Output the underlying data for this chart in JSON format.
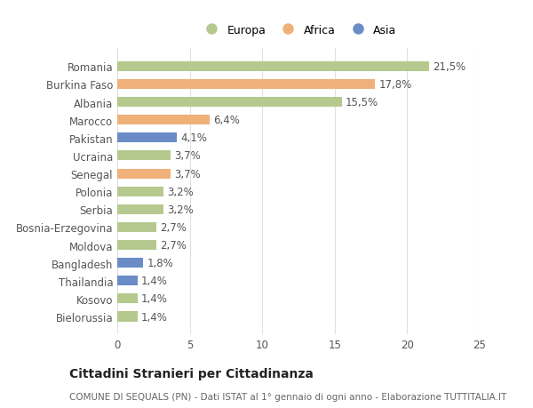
{
  "countries": [
    "Romania",
    "Burkina Faso",
    "Albania",
    "Marocco",
    "Pakistan",
    "Ucraina",
    "Senegal",
    "Polonia",
    "Serbia",
    "Bosnia-Erzegovina",
    "Moldova",
    "Bangladesh",
    "Thailandia",
    "Kosovo",
    "Bielorussia"
  ],
  "values": [
    21.5,
    17.8,
    15.5,
    6.4,
    4.1,
    3.7,
    3.7,
    3.2,
    3.2,
    2.7,
    2.7,
    1.8,
    1.4,
    1.4,
    1.4
  ],
  "labels": [
    "21,5%",
    "17,8%",
    "15,5%",
    "6,4%",
    "4,1%",
    "3,7%",
    "3,7%",
    "3,2%",
    "3,2%",
    "2,7%",
    "2,7%",
    "1,8%",
    "1,4%",
    "1,4%",
    "1,4%"
  ],
  "continents": [
    "Europa",
    "Africa",
    "Europa",
    "Africa",
    "Asia",
    "Europa",
    "Africa",
    "Europa",
    "Europa",
    "Europa",
    "Europa",
    "Asia",
    "Asia",
    "Europa",
    "Europa"
  ],
  "colors": {
    "Europa": "#b5c98e",
    "Africa": "#f0b07a",
    "Asia": "#6b8cc7"
  },
  "xlim": [
    0,
    25
  ],
  "xticks": [
    0,
    5,
    10,
    15,
    20,
    25
  ],
  "background_color": "#ffffff",
  "grid_color": "#e0e0e0",
  "title": "Cittadini Stranieri per Cittadinanza",
  "subtitle": "COMUNE DI SEQUALS (PN) - Dati ISTAT al 1° gennaio di ogni anno - Elaborazione TUTTITALIA.IT",
  "bar_height": 0.55,
  "label_fontsize": 8.5,
  "tick_fontsize": 8.5,
  "title_fontsize": 10,
  "subtitle_fontsize": 7.5
}
